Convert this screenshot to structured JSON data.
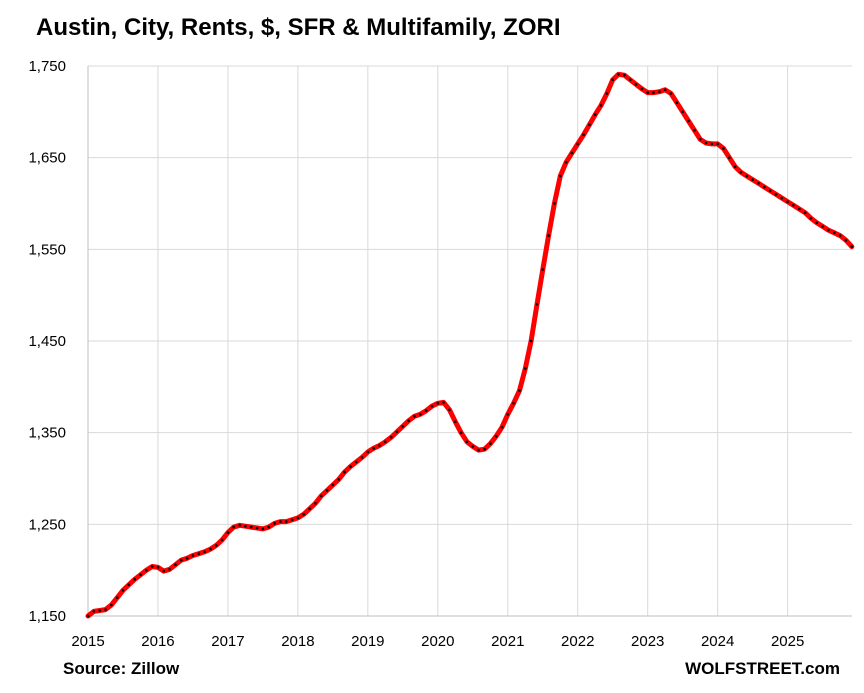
{
  "chart_data": {
    "type": "line",
    "title": "Austin, City, Rents, $, SFR & Multifamily, ZORI",
    "xlabel": "",
    "ylabel": "",
    "source": "Source: Zillow",
    "brand": "WOLFSTREET.com",
    "xlim": [
      2015.0,
      2025.92
    ],
    "ylim": [
      1150,
      1750
    ],
    "y_ticks": [
      1150,
      1250,
      1350,
      1450,
      1550,
      1650,
      1750
    ],
    "y_tick_labels": [
      "1,150",
      "1,250",
      "1,350",
      "1,450",
      "1,550",
      "1,650",
      "1,750"
    ],
    "x_ticks": [
      2015,
      2016,
      2017,
      2018,
      2019,
      2020,
      2021,
      2022,
      2023,
      2024,
      2025
    ],
    "x_tick_labels": [
      "2015",
      "2016",
      "2017",
      "2018",
      "2019",
      "2020",
      "2021",
      "2022",
      "2023",
      "2024",
      "2025"
    ],
    "grid": true,
    "line_color": "#ff0000",
    "marker_color": "#000000",
    "series": [
      {
        "x": [
          2015.0,
          2015.083,
          2015.167,
          2015.25,
          2015.333,
          2015.417,
          2015.5,
          2015.583,
          2015.667,
          2015.75,
          2015.833,
          2015.917,
          2016.0,
          2016.083,
          2016.167,
          2016.25,
          2016.333,
          2016.417,
          2016.5,
          2016.583,
          2016.667,
          2016.75,
          2016.833,
          2016.917,
          2017.0,
          2017.083,
          2017.167,
          2017.25,
          2017.333,
          2017.417,
          2017.5,
          2017.583,
          2017.667,
          2017.75,
          2017.833,
          2017.917,
          2018.0,
          2018.083,
          2018.167,
          2018.25,
          2018.333,
          2018.417,
          2018.5,
          2018.583,
          2018.667,
          2018.75,
          2018.833,
          2018.917,
          2019.0,
          2019.083,
          2019.167,
          2019.25,
          2019.333,
          2019.417,
          2019.5,
          2019.583,
          2019.667,
          2019.75,
          2019.833,
          2019.917,
          2020.0,
          2020.083,
          2020.167,
          2020.25,
          2020.333,
          2020.417,
          2020.5,
          2020.583,
          2020.667,
          2020.75,
          2020.833,
          2020.917,
          2021.0,
          2021.083,
          2021.167,
          2021.25,
          2021.333,
          2021.417,
          2021.5,
          2021.583,
          2021.667,
          2021.75,
          2021.833,
          2021.917,
          2022.0,
          2022.083,
          2022.167,
          2022.25,
          2022.333,
          2022.417,
          2022.5,
          2022.583,
          2022.667,
          2022.75,
          2022.833,
          2022.917,
          2023.0,
          2023.083,
          2023.167,
          2023.25,
          2023.333,
          2023.417,
          2023.5,
          2023.583,
          2023.667,
          2023.75,
          2023.833,
          2023.917,
          2024.0,
          2024.083,
          2024.167,
          2024.25,
          2024.333,
          2024.417,
          2024.5,
          2024.583,
          2024.667,
          2024.75,
          2024.833,
          2024.917,
          2025.0,
          2025.083,
          2025.167,
          2025.25,
          2025.333,
          2025.417,
          2025.5,
          2025.583,
          2025.667,
          2025.75,
          2025.833,
          2025.917
        ],
        "y": [
          1150,
          1155,
          1156,
          1157,
          1162,
          1170,
          1178,
          1184,
          1190,
          1195,
          1200,
          1204,
          1203,
          1199,
          1201,
          1206,
          1211,
          1213,
          1216,
          1218,
          1220,
          1223,
          1227,
          1233,
          1241,
          1247,
          1249,
          1248,
          1247,
          1246,
          1245,
          1247,
          1251,
          1253,
          1253,
          1255,
          1257,
          1261,
          1267,
          1273,
          1281,
          1287,
          1293,
          1299,
          1307,
          1313,
          1318,
          1323,
          1329,
          1333,
          1336,
          1340,
          1345,
          1351,
          1357,
          1363,
          1368,
          1370,
          1374,
          1379,
          1382,
          1383,
          1375,
          1362,
          1350,
          1340,
          1335,
          1331,
          1332,
          1338,
          1346,
          1356,
          1370,
          1382,
          1396,
          1420,
          1450,
          1490,
          1528,
          1565,
          1600,
          1630,
          1645,
          1655,
          1665,
          1675,
          1686,
          1697,
          1707,
          1720,
          1735,
          1741,
          1740,
          1735,
          1730,
          1725,
          1721,
          1721,
          1722,
          1724,
          1720,
          1710,
          1700,
          1690,
          1680,
          1670,
          1666,
          1665,
          1665,
          1660,
          1650,
          1640,
          1634,
          1630,
          1626,
          1622,
          1618,
          1614,
          1610,
          1606,
          1602,
          1598,
          1594,
          1590,
          1584,
          1579,
          1575,
          1571,
          1568,
          1565,
          1560,
          1553
        ]
      }
    ]
  }
}
